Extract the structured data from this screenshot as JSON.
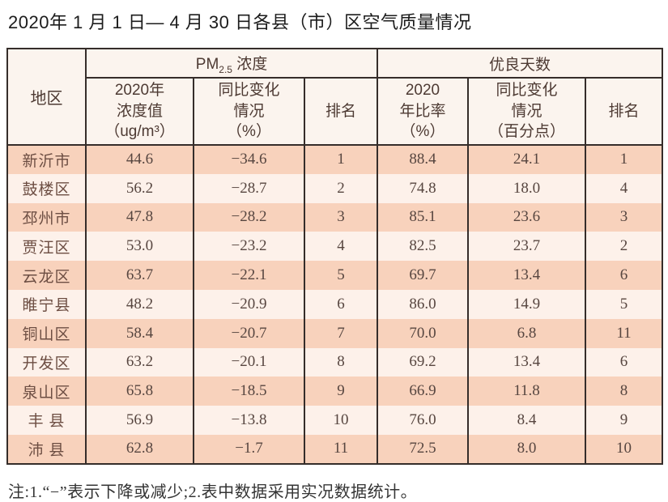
{
  "title": "2020年 1 月 1 日— 4 月 30 日各县（市）区空气质量情况",
  "colors": {
    "row_stripe_dark": "#f8d2bc",
    "row_stripe_light": "#fdf1ea",
    "header_background": "#fbf4ee",
    "table_border": "#352d2a",
    "header_text": "#4d3a33",
    "body_text": "#574640"
  },
  "table": {
    "region_header": "地区",
    "pm_group": {
      "prefix": "PM",
      "sub": "2.5",
      "suffix": " 浓度"
    },
    "good_days_group": "优良天数",
    "sub_headers": {
      "pm_value": "2020年\n浓度值\n（ug/m³）",
      "pm_change": "同比变化\n情况\n（%）",
      "pm_rank": "排名",
      "gd_ratio": "2020\n年比率\n（%）",
      "gd_change": "同比变化\n情况\n（百分点）",
      "gd_rank": "排名"
    },
    "rows": [
      {
        "region": "新沂市",
        "pm_value": "44.6",
        "pm_change": "−34.6",
        "pm_rank": "1",
        "gd_ratio": "88.4",
        "gd_change": "24.1",
        "gd_rank": "1"
      },
      {
        "region": "鼓楼区",
        "pm_value": "56.2",
        "pm_change": "−28.7",
        "pm_rank": "2",
        "gd_ratio": "74.8",
        "gd_change": "18.0",
        "gd_rank": "4"
      },
      {
        "region": "邳州市",
        "pm_value": "47.8",
        "pm_change": "−28.2",
        "pm_rank": "3",
        "gd_ratio": "85.1",
        "gd_change": "23.6",
        "gd_rank": "3"
      },
      {
        "region": "贾汪区",
        "pm_value": "53.0",
        "pm_change": "−23.2",
        "pm_rank": "4",
        "gd_ratio": "82.5",
        "gd_change": "23.7",
        "gd_rank": "2"
      },
      {
        "region": "云龙区",
        "pm_value": "63.7",
        "pm_change": "−22.1",
        "pm_rank": "5",
        "gd_ratio": "69.7",
        "gd_change": "13.4",
        "gd_rank": "6"
      },
      {
        "region": "睢宁县",
        "pm_value": "48.2",
        "pm_change": "−20.9",
        "pm_rank": "6",
        "gd_ratio": "86.0",
        "gd_change": "14.9",
        "gd_rank": "5"
      },
      {
        "region": "铜山区",
        "pm_value": "58.4",
        "pm_change": "−20.7",
        "pm_rank": "7",
        "gd_ratio": "70.0",
        "gd_change": "6.8",
        "gd_rank": "11"
      },
      {
        "region": "开发区",
        "pm_value": "63.2",
        "pm_change": "−20.1",
        "pm_rank": "8",
        "gd_ratio": "69.2",
        "gd_change": "13.4",
        "gd_rank": "6"
      },
      {
        "region": "泉山区",
        "pm_value": "65.8",
        "pm_change": "−18.5",
        "pm_rank": "9",
        "gd_ratio": "66.9",
        "gd_change": "11.8",
        "gd_rank": "8"
      },
      {
        "region": "丰 县",
        "pm_value": "56.9",
        "pm_change": "−13.8",
        "pm_rank": "10",
        "gd_ratio": "76.0",
        "gd_change": "8.4",
        "gd_rank": "9"
      },
      {
        "region": "沛 县",
        "pm_value": "62.8",
        "pm_change": "−1.7",
        "pm_rank": "11",
        "gd_ratio": "72.5",
        "gd_change": "8.0",
        "gd_rank": "10"
      }
    ]
  },
  "footnote": "注:1.“−”表示下降或减少;2.表中数据采用实况数据统计。"
}
